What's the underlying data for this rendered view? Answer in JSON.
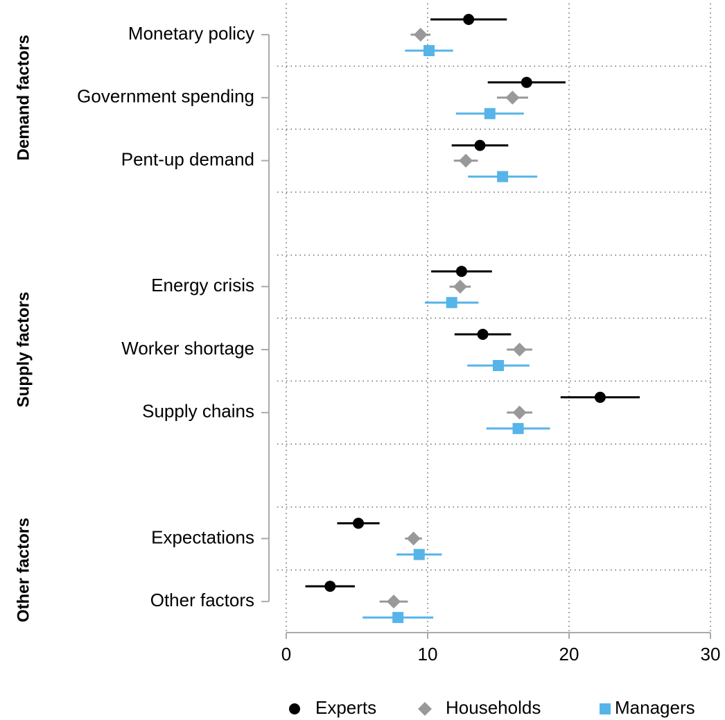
{
  "chart_data": {
    "type": "dot-errorbar",
    "groups": [
      "Demand factors",
      "Supply factors",
      "Other factors"
    ],
    "categories": [
      "Monetary policy",
      "Government spending",
      "Pent-up demand",
      null,
      "Energy crisis",
      "Worker shortage",
      "Supply chains",
      null,
      "Expectations",
      "Other factors"
    ],
    "series": [
      {
        "name": "Experts",
        "color": "#000000",
        "marker": "circle",
        "values": [
          12.9,
          17.0,
          13.7,
          null,
          12.4,
          13.9,
          22.2,
          null,
          5.1,
          3.1
        ],
        "errors": [
          2.7,
          2.75,
          2.0,
          null,
          2.15,
          2.0,
          2.8,
          null,
          1.5,
          1.75
        ]
      },
      {
        "name": "Households",
        "color": "#999999",
        "marker": "diamond",
        "values": [
          9.5,
          16.0,
          12.7,
          null,
          12.3,
          16.5,
          16.5,
          null,
          9.0,
          7.6
        ],
        "errors": [
          0.7,
          1.1,
          0.85,
          null,
          0.75,
          0.9,
          0.9,
          null,
          0.6,
          1.0
        ]
      },
      {
        "name": "Managers",
        "color": "#56b4e9",
        "marker": "square",
        "values": [
          10.1,
          14.4,
          15.3,
          null,
          11.7,
          15.0,
          16.4,
          null,
          9.4,
          7.9
        ],
        "errors": [
          1.7,
          2.4,
          2.45,
          null,
          1.9,
          2.2,
          2.25,
          null,
          1.6,
          2.5
        ]
      }
    ],
    "xlim": [
      0,
      30
    ],
    "xticks": [
      0,
      10,
      20,
      30
    ],
    "grid": true,
    "legend": "bottom"
  }
}
